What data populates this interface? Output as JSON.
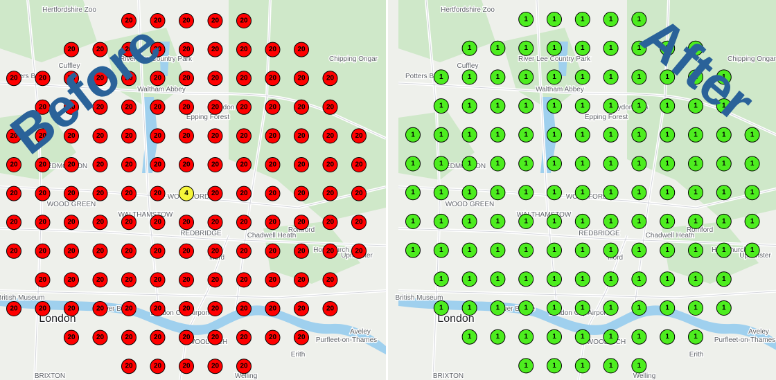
{
  "map_labels": [
    "Hertfordshire Zoo",
    "Potters Bar",
    "Cuffley",
    "River Lee Country Park",
    "Waltham Abbey",
    "Epping Forest",
    "Theydon Bois",
    "Chipping Ongar",
    "EDMONTON",
    "WOOD GREEN",
    "WALTHAMSTOW",
    "WOODFORD",
    "REDBRIDGE",
    "Chadwell Heath",
    "Romford",
    "Hornchurch",
    "Upminster",
    "Ilford",
    "British Museum",
    "London",
    "Tower Bridge",
    "London City Airport",
    "WOOLWICH",
    "Aveley",
    "Purfleet-on-Thames",
    "Erith",
    "Welling",
    "BRIXTON"
  ],
  "panels": [
    {
      "overlay": "Before",
      "rows": [
        [
          "20",
          "20",
          "20",
          "20",
          "20"
        ],
        [
          "20",
          "20",
          "20",
          "20",
          "20",
          "20",
          "20",
          "20",
          "20"
        ],
        [
          "20",
          "20",
          "20",
          "20",
          "20",
          "20",
          "20",
          "20",
          "20",
          "20",
          "20",
          "20"
        ],
        [
          "20",
          "20",
          "20",
          "20",
          "20",
          "20",
          "20",
          "20",
          "20",
          "20",
          "20"
        ],
        [
          "20",
          "20",
          "20",
          "20",
          "20",
          "20",
          "20",
          "20",
          "20",
          "20",
          "20",
          "20",
          "20"
        ],
        [
          "20",
          "20",
          "20",
          "20",
          "20",
          "20",
          "20",
          "20",
          "20",
          "20",
          "20",
          "20",
          "20"
        ],
        [
          "20",
          "20",
          "20",
          "20",
          "20",
          "20",
          "4",
          "20",
          "20",
          "20",
          "20",
          "20",
          "20"
        ],
        [
          "20",
          "20",
          "20",
          "20",
          "20",
          "20",
          "20",
          "20",
          "20",
          "20",
          "20",
          "20",
          "20"
        ],
        [
          "20",
          "20",
          "20",
          "20",
          "20",
          "20",
          "20",
          "20",
          "20",
          "20",
          "20",
          "20",
          "20"
        ],
        [
          "20",
          "20",
          "20",
          "20",
          "20",
          "20",
          "20",
          "20",
          "20",
          "20",
          "20"
        ],
        [
          "20",
          "20",
          "20",
          "20",
          "20",
          "20",
          "20",
          "20",
          "20",
          "20",
          "20",
          "20"
        ],
        [
          "20",
          "20",
          "20",
          "20",
          "20",
          "20",
          "20",
          "20",
          "20"
        ],
        [
          "20",
          "20",
          "20",
          "20",
          "20"
        ]
      ]
    },
    {
      "overlay": "After",
      "rows": [
        [
          "1",
          "1",
          "1",
          "1",
          "1"
        ],
        [
          "1",
          "1",
          "1",
          "1",
          "1",
          "1",
          "1",
          "1",
          "1"
        ],
        [
          "1",
          "1",
          "1",
          "1",
          "1",
          "1",
          "1",
          "1",
          "1",
          "1",
          "1"
        ],
        [
          "1",
          "1",
          "1",
          "1",
          "1",
          "1",
          "1",
          "1",
          "1",
          "1",
          "1"
        ],
        [
          "1",
          "1",
          "1",
          "1",
          "1",
          "1",
          "1",
          "1",
          "1",
          "1",
          "1",
          "1",
          "1"
        ],
        [
          "1",
          "1",
          "1",
          "1",
          "1",
          "1",
          "1",
          "1",
          "1",
          "1",
          "1",
          "1",
          "1"
        ],
        [
          "1",
          "1",
          "1",
          "1",
          "1",
          "1",
          "1",
          "1",
          "1",
          "1",
          "1",
          "1",
          "1"
        ],
        [
          "1",
          "1",
          "1",
          "1",
          "1",
          "1",
          "1",
          "1",
          "1",
          "1",
          "1",
          "1",
          "1"
        ],
        [
          "1",
          "1",
          "1",
          "1",
          "1",
          "1",
          "1",
          "1",
          "1",
          "1",
          "1",
          "1",
          "1"
        ],
        [
          "1",
          "1",
          "1",
          "1",
          "1",
          "1",
          "1",
          "1",
          "1",
          "1",
          "1"
        ],
        [
          "1",
          "1",
          "1",
          "1",
          "1",
          "1",
          "1",
          "1",
          "1",
          "1",
          "1"
        ],
        [
          "1",
          "1",
          "1",
          "1",
          "1",
          "1",
          "1",
          "1",
          "1"
        ],
        [
          "1",
          "1",
          "1",
          "1",
          "1"
        ]
      ]
    }
  ]
}
